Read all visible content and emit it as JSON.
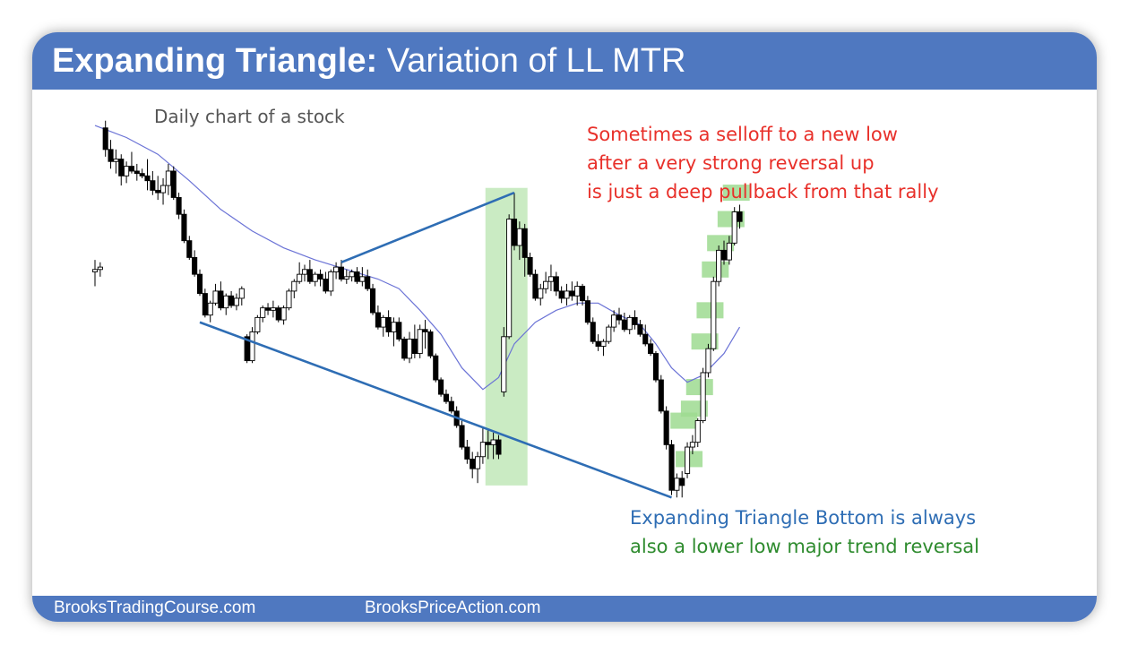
{
  "title": {
    "bold": "Expanding Triangle:",
    "regular": "Variation of LL MTR"
  },
  "subtitle": "Daily chart of a stock",
  "annotations": {
    "red_note": [
      "Sometimes a selloff to a new low",
      "after a very strong reversal up",
      "is just a deep pullback from that rally"
    ],
    "blue_note": "Expanding Triangle Bottom is always",
    "green_note": "also a lower low major trend reversal"
  },
  "footer": {
    "left": "BrooksTradingCourse.com",
    "right": "BrooksPriceAction.com"
  },
  "colors": {
    "header": "#4f78c0",
    "trendline": "#2e6db4",
    "moving_average": "#6b73d6",
    "highlight": "#9edb91",
    "red_text": "#e8302a",
    "blue_text": "#2e6db4",
    "green_text": "#2e8b2e",
    "candle": "#000000"
  },
  "chart_data": {
    "type": "candlestick",
    "timeframe": "daily",
    "ohlc": [
      {
        "o": 6.8,
        "h": 7.3,
        "l": 6.2,
        "c": 6.9
      },
      {
        "o": 6.9,
        "h": 7.2,
        "l": 6.6,
        "c": 7.0
      },
      {
        "o": 12.8,
        "h": 13.1,
        "l": 11.6,
        "c": 11.9
      },
      {
        "o": 11.9,
        "h": 12.3,
        "l": 11.1,
        "c": 11.4
      },
      {
        "o": 11.4,
        "h": 11.9,
        "l": 10.9,
        "c": 11.5
      },
      {
        "o": 11.5,
        "h": 11.7,
        "l": 10.4,
        "c": 10.8
      },
      {
        "o": 10.8,
        "h": 11.4,
        "l": 10.5,
        "c": 11.2
      },
      {
        "o": 11.2,
        "h": 11.8,
        "l": 10.9,
        "c": 11.0
      },
      {
        "o": 11.0,
        "h": 11.3,
        "l": 10.6,
        "c": 10.9
      },
      {
        "o": 10.9,
        "h": 11.1,
        "l": 10.7,
        "c": 10.8
      },
      {
        "o": 10.8,
        "h": 11.5,
        "l": 10.2,
        "c": 10.6
      },
      {
        "o": 10.6,
        "h": 11.0,
        "l": 10.0,
        "c": 10.2
      },
      {
        "o": 10.2,
        "h": 10.8,
        "l": 9.8,
        "c": 10.1
      },
      {
        "o": 10.1,
        "h": 10.7,
        "l": 9.6,
        "c": 10.4
      },
      {
        "o": 10.4,
        "h": 11.3,
        "l": 10.0,
        "c": 11.0
      },
      {
        "o": 11.0,
        "h": 11.2,
        "l": 9.8,
        "c": 9.9
      },
      {
        "o": 9.9,
        "h": 10.1,
        "l": 9.0,
        "c": 9.2
      },
      {
        "o": 9.2,
        "h": 9.4,
        "l": 8.0,
        "c": 8.1
      },
      {
        "o": 8.1,
        "h": 8.3,
        "l": 7.3,
        "c": 7.4
      },
      {
        "o": 7.4,
        "h": 7.7,
        "l": 6.6,
        "c": 6.7
      },
      {
        "o": 6.7,
        "h": 6.9,
        "l": 5.8,
        "c": 5.9
      },
      {
        "o": 5.9,
        "h": 6.1,
        "l": 4.9,
        "c": 5.0
      },
      {
        "o": 5.0,
        "h": 5.6,
        "l": 4.7,
        "c": 5.5
      },
      {
        "o": 5.5,
        "h": 6.3,
        "l": 5.4,
        "c": 6.0
      },
      {
        "o": 6.0,
        "h": 6.4,
        "l": 5.2,
        "c": 5.3
      },
      {
        "o": 5.3,
        "h": 5.9,
        "l": 5.0,
        "c": 5.8
      },
      {
        "o": 5.8,
        "h": 6.0,
        "l": 5.3,
        "c": 5.4
      },
      {
        "o": 5.4,
        "h": 5.9,
        "l": 5.2,
        "c": 5.7
      },
      {
        "o": 5.7,
        "h": 6.2,
        "l": 5.4,
        "c": 6.1
      },
      {
        "o": 4.1,
        "h": 4.2,
        "l": 3.0,
        "c": 3.1
      },
      {
        "o": 3.1,
        "h": 4.5,
        "l": 3.0,
        "c": 4.3
      },
      {
        "o": 4.3,
        "h": 5.0,
        "l": 4.2,
        "c": 4.9
      },
      {
        "o": 4.9,
        "h": 5.4,
        "l": 4.7,
        "c": 5.3
      },
      {
        "o": 5.3,
        "h": 5.5,
        "l": 5.0,
        "c": 5.2
      },
      {
        "o": 5.2,
        "h": 5.6,
        "l": 4.9,
        "c": 5.3
      },
      {
        "o": 5.3,
        "h": 5.4,
        "l": 4.7,
        "c": 4.8
      },
      {
        "o": 4.8,
        "h": 5.4,
        "l": 4.6,
        "c": 5.3
      },
      {
        "o": 5.3,
        "h": 6.1,
        "l": 5.2,
        "c": 6.0
      },
      {
        "o": 6.0,
        "h": 6.5,
        "l": 5.7,
        "c": 6.4
      },
      {
        "o": 6.4,
        "h": 7.2,
        "l": 6.3,
        "c": 6.7
      },
      {
        "o": 6.7,
        "h": 7.1,
        "l": 6.4,
        "c": 6.9
      },
      {
        "o": 6.9,
        "h": 7.3,
        "l": 6.3,
        "c": 6.4
      },
      {
        "o": 6.4,
        "h": 6.8,
        "l": 6.2,
        "c": 6.7
      },
      {
        "o": 6.7,
        "h": 6.9,
        "l": 6.2,
        "c": 6.5
      },
      {
        "o": 6.5,
        "h": 6.8,
        "l": 5.9,
        "c": 6.0
      },
      {
        "o": 6.0,
        "h": 6.9,
        "l": 5.8,
        "c": 6.8
      },
      {
        "o": 6.8,
        "h": 7.2,
        "l": 6.5,
        "c": 7.0
      },
      {
        "o": 7.0,
        "h": 7.3,
        "l": 6.4,
        "c": 6.5
      },
      {
        "o": 6.5,
        "h": 6.9,
        "l": 6.3,
        "c": 6.6
      },
      {
        "o": 6.6,
        "h": 6.9,
        "l": 6.4,
        "c": 6.8
      },
      {
        "o": 6.8,
        "h": 7.0,
        "l": 6.3,
        "c": 6.4
      },
      {
        "o": 6.4,
        "h": 7.0,
        "l": 6.2,
        "c": 6.6
      },
      {
        "o": 6.6,
        "h": 6.9,
        "l": 6.0,
        "c": 6.1
      },
      {
        "o": 6.1,
        "h": 6.3,
        "l": 5.0,
        "c": 5.1
      },
      {
        "o": 5.1,
        "h": 5.4,
        "l": 4.4,
        "c": 4.5
      },
      {
        "o": 4.5,
        "h": 5.0,
        "l": 4.1,
        "c": 4.9
      },
      {
        "o": 4.9,
        "h": 5.2,
        "l": 4.1,
        "c": 4.3
      },
      {
        "o": 4.3,
        "h": 4.9,
        "l": 3.7,
        "c": 4.7
      },
      {
        "o": 4.7,
        "h": 4.9,
        "l": 3.9,
        "c": 4.0
      },
      {
        "o": 4.0,
        "h": 4.1,
        "l": 3.1,
        "c": 3.2
      },
      {
        "o": 3.2,
        "h": 4.3,
        "l": 3.0,
        "c": 4.0
      },
      {
        "o": 4.0,
        "h": 4.6,
        "l": 3.2,
        "c": 3.4
      },
      {
        "o": 3.4,
        "h": 4.6,
        "l": 3.2,
        "c": 4.4
      },
      {
        "o": 4.4,
        "h": 4.8,
        "l": 3.6,
        "c": 4.3
      },
      {
        "o": 4.3,
        "h": 4.4,
        "l": 3.2,
        "c": 3.3
      },
      {
        "o": 3.3,
        "h": 3.4,
        "l": 2.2,
        "c": 2.3
      },
      {
        "o": 2.3,
        "h": 2.4,
        "l": 1.6,
        "c": 1.7
      },
      {
        "o": 1.7,
        "h": 1.9,
        "l": 1.3,
        "c": 1.4
      },
      {
        "o": 1.4,
        "h": 1.6,
        "l": 0.9,
        "c": 1.0
      },
      {
        "o": 1.0,
        "h": 1.2,
        "l": 0.3,
        "c": 0.4
      },
      {
        "o": 0.4,
        "h": 0.6,
        "l": -0.6,
        "c": -0.5
      },
      {
        "o": -0.5,
        "h": -0.2,
        "l": -1.2,
        "c": -1.0
      },
      {
        "o": -1.0,
        "h": -0.7,
        "l": -1.8,
        "c": -1.4
      },
      {
        "o": -1.4,
        "h": -0.7,
        "l": -2.0,
        "c": -0.9
      },
      {
        "o": -0.9,
        "h": 0.3,
        "l": -1.2,
        "c": -0.3
      },
      {
        "o": -0.3,
        "h": 0.2,
        "l": -1.0,
        "c": -0.4
      },
      {
        "o": -0.4,
        "h": 0.1,
        "l": -1.0,
        "c": -0.2
      },
      {
        "o": -0.2,
        "h": 0.0,
        "l": -1.0,
        "c": -0.8
      },
      {
        "o": 1.8,
        "h": 4.5,
        "l": 1.6,
        "c": 4.1
      },
      {
        "o": 4.1,
        "h": 9.2,
        "l": 4.0,
        "c": 9.0
      },
      {
        "o": 9.0,
        "h": 10.1,
        "l": 7.7,
        "c": 7.9
      },
      {
        "o": 7.9,
        "h": 8.9,
        "l": 7.3,
        "c": 8.6
      },
      {
        "o": 8.6,
        "h": 8.8,
        "l": 6.6,
        "c": 7.4
      },
      {
        "o": 7.4,
        "h": 7.6,
        "l": 6.6,
        "c": 6.7
      },
      {
        "o": 6.7,
        "h": 6.9,
        "l": 5.6,
        "c": 5.7
      },
      {
        "o": 5.7,
        "h": 6.3,
        "l": 5.4,
        "c": 6.1
      },
      {
        "o": 6.1,
        "h": 6.8,
        "l": 5.9,
        "c": 6.4
      },
      {
        "o": 6.4,
        "h": 7.1,
        "l": 6.0,
        "c": 6.6
      },
      {
        "o": 6.6,
        "h": 6.8,
        "l": 5.8,
        "c": 6.0
      },
      {
        "o": 6.0,
        "h": 6.2,
        "l": 5.5,
        "c": 5.7
      },
      {
        "o": 5.7,
        "h": 6.3,
        "l": 5.4,
        "c": 6.0
      },
      {
        "o": 6.0,
        "h": 6.4,
        "l": 5.6,
        "c": 5.8
      },
      {
        "o": 5.8,
        "h": 6.4,
        "l": 5.4,
        "c": 6.2
      },
      {
        "o": 6.2,
        "h": 6.3,
        "l": 5.4,
        "c": 5.6
      },
      {
        "o": 5.6,
        "h": 5.8,
        "l": 4.6,
        "c": 4.7
      },
      {
        "o": 4.7,
        "h": 4.9,
        "l": 3.8,
        "c": 3.9
      },
      {
        "o": 3.9,
        "h": 4.2,
        "l": 3.5,
        "c": 3.7
      },
      {
        "o": 3.7,
        "h": 4.0,
        "l": 3.3,
        "c": 3.9
      },
      {
        "o": 3.9,
        "h": 4.6,
        "l": 3.8,
        "c": 4.5
      },
      {
        "o": 4.5,
        "h": 5.2,
        "l": 4.3,
        "c": 5.0
      },
      {
        "o": 5.0,
        "h": 5.3,
        "l": 4.6,
        "c": 4.8
      },
      {
        "o": 4.8,
        "h": 5.1,
        "l": 4.3,
        "c": 4.4
      },
      {
        "o": 4.4,
        "h": 5.0,
        "l": 4.2,
        "c": 4.9
      },
      {
        "o": 4.9,
        "h": 5.2,
        "l": 4.4,
        "c": 4.6
      },
      {
        "o": 4.6,
        "h": 4.8,
        "l": 4.1,
        "c": 4.2
      },
      {
        "o": 4.2,
        "h": 4.6,
        "l": 3.7,
        "c": 3.8
      },
      {
        "o": 3.8,
        "h": 4.0,
        "l": 3.3,
        "c": 3.4
      },
      {
        "o": 3.4,
        "h": 3.5,
        "l": 2.2,
        "c": 2.3
      },
      {
        "o": 2.3,
        "h": 2.5,
        "l": 0.9,
        "c": 1.0
      },
      {
        "o": 1.0,
        "h": 1.2,
        "l": -0.6,
        "c": -0.4
      },
      {
        "o": -0.4,
        "h": -0.2,
        "l": -2.5,
        "c": -2.3
      },
      {
        "o": -2.3,
        "h": -1.6,
        "l": -2.6,
        "c": -1.8
      },
      {
        "o": -1.8,
        "h": -1.5,
        "l": -2.6,
        "c": -2.1
      },
      {
        "o": -1.6,
        "h": -0.3,
        "l": -1.8,
        "c": -0.5
      },
      {
        "o": -0.5,
        "h": 0.0,
        "l": -0.8,
        "c": -0.3
      },
      {
        "o": -0.3,
        "h": 0.7,
        "l": -0.5,
        "c": 0.6
      },
      {
        "o": 0.6,
        "h": 2.8,
        "l": 0.5,
        "c": 2.6
      },
      {
        "o": 2.6,
        "h": 3.8,
        "l": 2.4,
        "c": 3.6
      },
      {
        "o": 3.6,
        "h": 6.6,
        "l": 3.5,
        "c": 6.4
      },
      {
        "o": 6.4,
        "h": 7.9,
        "l": 6.2,
        "c": 7.7
      },
      {
        "o": 7.7,
        "h": 8.1,
        "l": 7.1,
        "c": 7.3
      },
      {
        "o": 7.3,
        "h": 8.3,
        "l": 7.1,
        "c": 8.0
      },
      {
        "o": 8.0,
        "h": 9.5,
        "l": 7.9,
        "c": 9.3
      },
      {
        "o": 9.3,
        "h": 9.6,
        "l": 8.6,
        "c": 8.9
      }
    ],
    "moving_average": [
      {
        "i": 0,
        "v": 12.9
      },
      {
        "i": 6,
        "v": 12.4
      },
      {
        "i": 12,
        "v": 11.7
      },
      {
        "i": 18,
        "v": 10.6
      },
      {
        "i": 24,
        "v": 9.4
      },
      {
        "i": 30,
        "v": 8.5
      },
      {
        "i": 36,
        "v": 7.8
      },
      {
        "i": 42,
        "v": 7.3
      },
      {
        "i": 48,
        "v": 6.9
      },
      {
        "i": 54,
        "v": 6.5
      },
      {
        "i": 58,
        "v": 6.1
      },
      {
        "i": 62,
        "v": 5.2
      },
      {
        "i": 66,
        "v": 4.2
      },
      {
        "i": 70,
        "v": 2.8
      },
      {
        "i": 74,
        "v": 1.9
      },
      {
        "i": 77,
        "v": 2.4
      },
      {
        "i": 80,
        "v": 3.8
      },
      {
        "i": 84,
        "v": 4.7
      },
      {
        "i": 88,
        "v": 5.2
      },
      {
        "i": 92,
        "v": 5.5
      },
      {
        "i": 96,
        "v": 5.5
      },
      {
        "i": 100,
        "v": 5.0
      },
      {
        "i": 104,
        "v": 4.6
      },
      {
        "i": 107,
        "v": 3.8
      },
      {
        "i": 110,
        "v": 2.8
      },
      {
        "i": 113,
        "v": 2.2
      },
      {
        "i": 116,
        "v": 2.5
      },
      {
        "i": 120,
        "v": 3.4
      },
      {
        "i": 123,
        "v": 4.5
      }
    ],
    "trendlines": [
      {
        "name": "upper",
        "from": {
          "i": 47,
          "v": 7.2
        },
        "to": {
          "i": 80,
          "v": 10.1
        }
      },
      {
        "name": "lower",
        "from": {
          "i": 20,
          "v": 4.7
        },
        "to": {
          "i": 110,
          "v": -2.6
        }
      }
    ],
    "highlight_band": {
      "from_i": 75,
      "to_i": 82
    },
    "green_boxes": [
      {
        "i": 113,
        "v": -1.0
      },
      {
        "i": 112,
        "v": 0.6
      },
      {
        "i": 114,
        "v": 1.1
      },
      {
        "i": 115,
        "v": 2.0
      },
      {
        "i": 116,
        "v": 3.9
      },
      {
        "i": 117,
        "v": 5.2
      },
      {
        "i": 118,
        "v": 6.9
      },
      {
        "i": 119,
        "v": 8.0
      },
      {
        "i": 121,
        "v": 9.0
      },
      {
        "i": 122,
        "v": 10.1
      }
    ]
  }
}
